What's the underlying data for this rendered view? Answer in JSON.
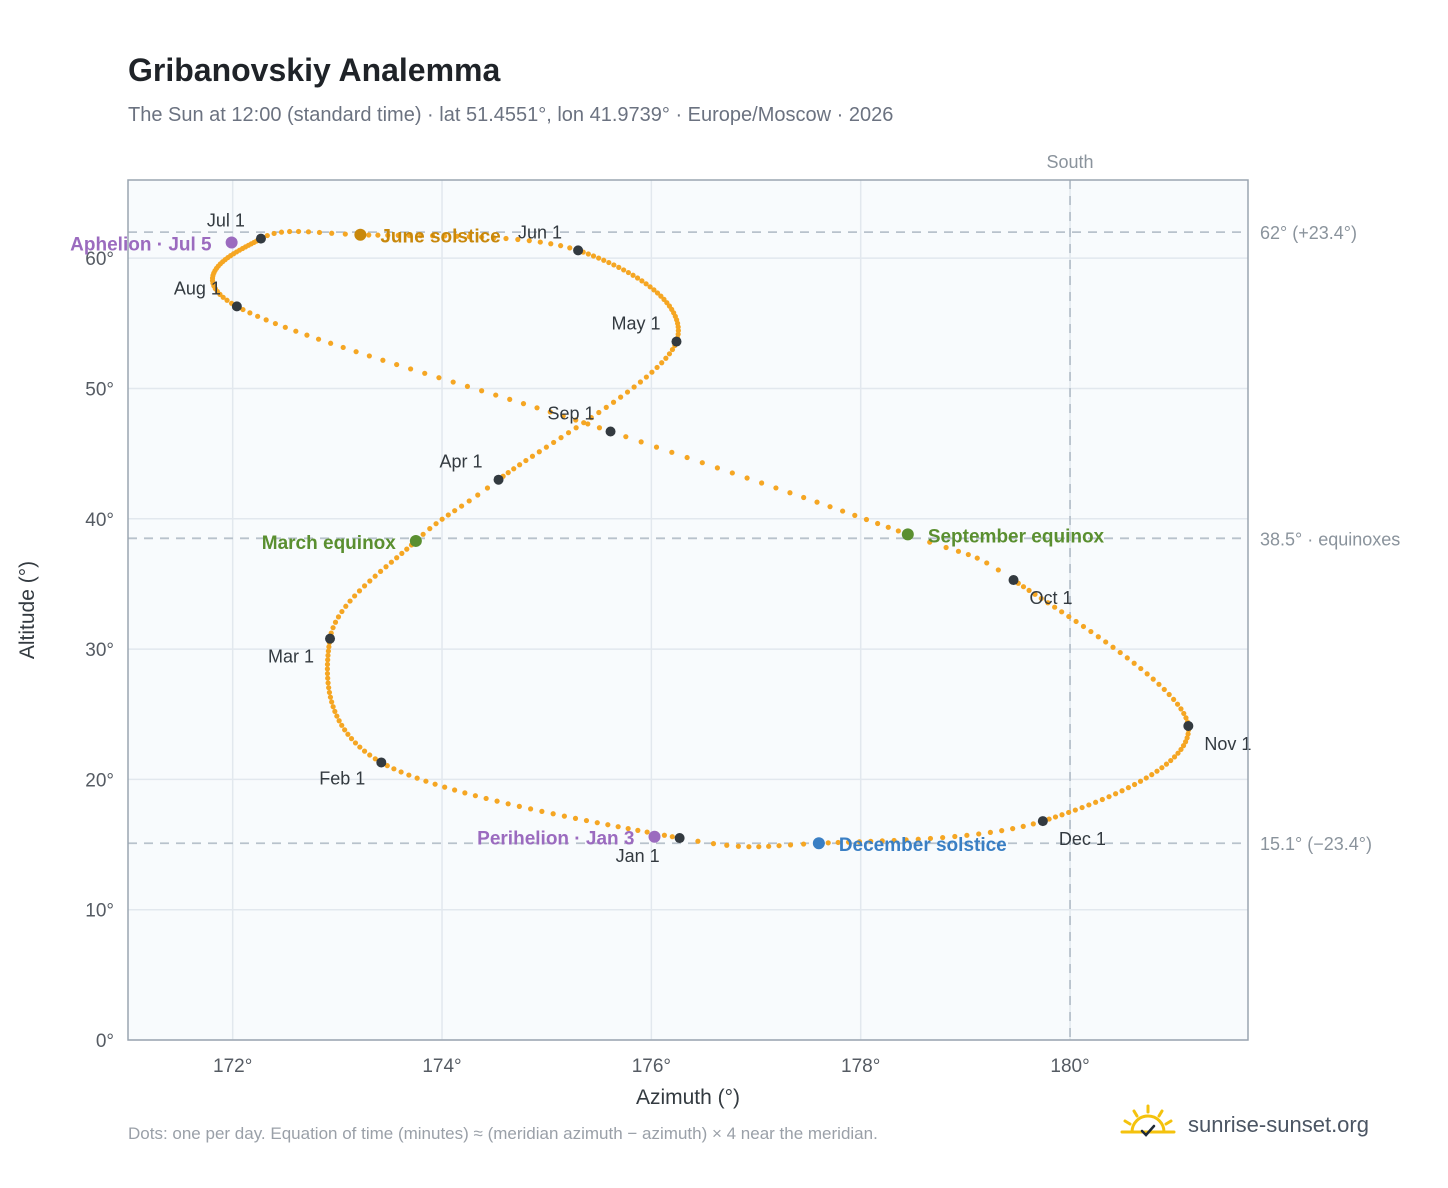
{
  "title": "Gribanovskiy Analemma",
  "subtitle": "The Sun at 12:00 (standard time) · lat 51.4551°, lon 41.9739° · Europe/Moscow · 2026",
  "footnote": "Dots: one per day. Equation of time (minutes) ≈ (meridian azimuth − azimuth) × 4 near the meridian.",
  "brand": {
    "text": "sunrise-sunset.org",
    "icon": "sun-icon",
    "color": "#f4c20d"
  },
  "colors": {
    "curve": "#f5a623",
    "month_marker": "#333a40",
    "solstice_june": "#c8880c",
    "equinox": "#5a8f30",
    "solstice_december": "#3a7fc4",
    "aphelion_perihelion": "#9b6bbf",
    "plot_background": "#f8fbfd",
    "grid": "#e2e8ee",
    "reference_line": "#b8c2cc"
  },
  "chart_data": {
    "type": "scatter",
    "title": "Gribanovskiy Analemma",
    "xlabel": "Azimuth (°)",
    "ylabel": "Altitude (°)",
    "xlim": [
      171.0,
      181.7
    ],
    "ylim": [
      0,
      66
    ],
    "x_ticks": [
      172,
      174,
      176,
      178,
      180
    ],
    "x_tick_labels": [
      "172°",
      "174°",
      "176°",
      "178°",
      "180°"
    ],
    "y_ticks": [
      0,
      10,
      20,
      30,
      40,
      50,
      60
    ],
    "y_tick_labels": [
      "0°",
      "10°",
      "20°",
      "30°",
      "40°",
      "50°",
      "60°"
    ],
    "grid": true,
    "meridian": {
      "azimuth": 180,
      "label": "South"
    },
    "reference_lines": [
      {
        "altitude": 62.0,
        "label": "62° (+23.4°)"
      },
      {
        "altitude": 38.5,
        "label": "38.5° · equinoxes"
      },
      {
        "altitude": 15.1,
        "label": "15.1° (−23.4°)"
      }
    ],
    "path": [
      {
        "day": 1,
        "az": 176.27,
        "alt": 15.5
      },
      {
        "day": 32,
        "az": 173.42,
        "alt": 21.3
      },
      {
        "day": 60,
        "az": 172.93,
        "alt": 30.8
      },
      {
        "day": 80,
        "az": 173.75,
        "alt": 38.3
      },
      {
        "day": 91,
        "az": 174.54,
        "alt": 43.0
      },
      {
        "day": 121,
        "az": 176.24,
        "alt": 53.6
      },
      {
        "day": 152,
        "az": 175.3,
        "alt": 60.6
      },
      {
        "day": 172,
        "az": 173.22,
        "alt": 61.8
      },
      {
        "day": 182,
        "az": 172.27,
        "alt": 61.5
      },
      {
        "day": 213,
        "az": 172.04,
        "alt": 56.3
      },
      {
        "day": 244,
        "az": 175.61,
        "alt": 46.7
      },
      {
        "day": 266,
        "az": 178.45,
        "alt": 38.8
      },
      {
        "day": 274,
        "az": 179.46,
        "alt": 35.3
      },
      {
        "day": 305,
        "az": 181.13,
        "alt": 24.1
      },
      {
        "day": 335,
        "az": 179.74,
        "alt": 16.8
      },
      {
        "day": 355,
        "az": 177.6,
        "alt": 15.1
      },
      {
        "day": 366,
        "az": 176.27,
        "alt": 15.5
      }
    ],
    "month_markers": [
      {
        "label": "Jan 1",
        "az": 176.27,
        "alt": 15.5,
        "anchor": "middle",
        "dx": -42,
        "dy": 24
      },
      {
        "label": "Feb 1",
        "az": 173.42,
        "alt": 21.3,
        "anchor": "end",
        "dx": -16,
        "dy": 22
      },
      {
        "label": "Mar 1",
        "az": 172.93,
        "alt": 30.8,
        "anchor": "end",
        "dx": -16,
        "dy": 24
      },
      {
        "label": "Apr 1",
        "az": 174.54,
        "alt": 43.0,
        "anchor": "end",
        "dx": -16,
        "dy": -12
      },
      {
        "label": "May 1",
        "az": 176.24,
        "alt": 53.6,
        "anchor": "end",
        "dx": -16,
        "dy": -12
      },
      {
        "label": "Jun 1",
        "az": 175.3,
        "alt": 60.6,
        "anchor": "end",
        "dx": -16,
        "dy": -12
      },
      {
        "label": "Jul 1",
        "az": 172.27,
        "alt": 61.5,
        "anchor": "end",
        "dx": -16,
        "dy": -12
      },
      {
        "label": "Aug 1",
        "az": 172.04,
        "alt": 56.3,
        "anchor": "end",
        "dx": -16,
        "dy": -12
      },
      {
        "label": "Sep 1",
        "az": 175.61,
        "alt": 46.7,
        "anchor": "end",
        "dx": -16,
        "dy": -12
      },
      {
        "label": "Oct 1",
        "az": 179.46,
        "alt": 35.3,
        "anchor": "start",
        "dx": 16,
        "dy": 24
      },
      {
        "label": "Nov 1",
        "az": 181.13,
        "alt": 24.1,
        "anchor": "start",
        "dx": 16,
        "dy": 24
      },
      {
        "label": "Dec 1",
        "az": 179.74,
        "alt": 16.8,
        "anchor": "start",
        "dx": 16,
        "dy": 24
      }
    ],
    "events": [
      {
        "label": "June solstice",
        "az": 173.22,
        "alt": 61.8,
        "color": "#c8880c",
        "anchor": "start",
        "dx": 20,
        "dy": 8
      },
      {
        "label": "March equinox",
        "az": 173.75,
        "alt": 38.3,
        "color": "#5a8f30",
        "anchor": "end",
        "dx": -20,
        "dy": 8
      },
      {
        "label": "September equinox",
        "az": 178.45,
        "alt": 38.8,
        "color": "#5a8f30",
        "anchor": "start",
        "dx": 20,
        "dy": 8
      },
      {
        "label": "December solstice",
        "az": 177.6,
        "alt": 15.1,
        "color": "#3a7fc4",
        "anchor": "start",
        "dx": 20,
        "dy": 8
      },
      {
        "label": "Aphelion · Jul 5",
        "az": 171.99,
        "alt": 61.2,
        "color": "#9b6bbf",
        "anchor": "end",
        "dx": -20,
        "dy": 8
      },
      {
        "label": "Perihelion · Jan 3",
        "az": 176.03,
        "alt": 15.6,
        "color": "#9b6bbf",
        "anchor": "end",
        "dx": -20,
        "dy": 8
      }
    ]
  }
}
